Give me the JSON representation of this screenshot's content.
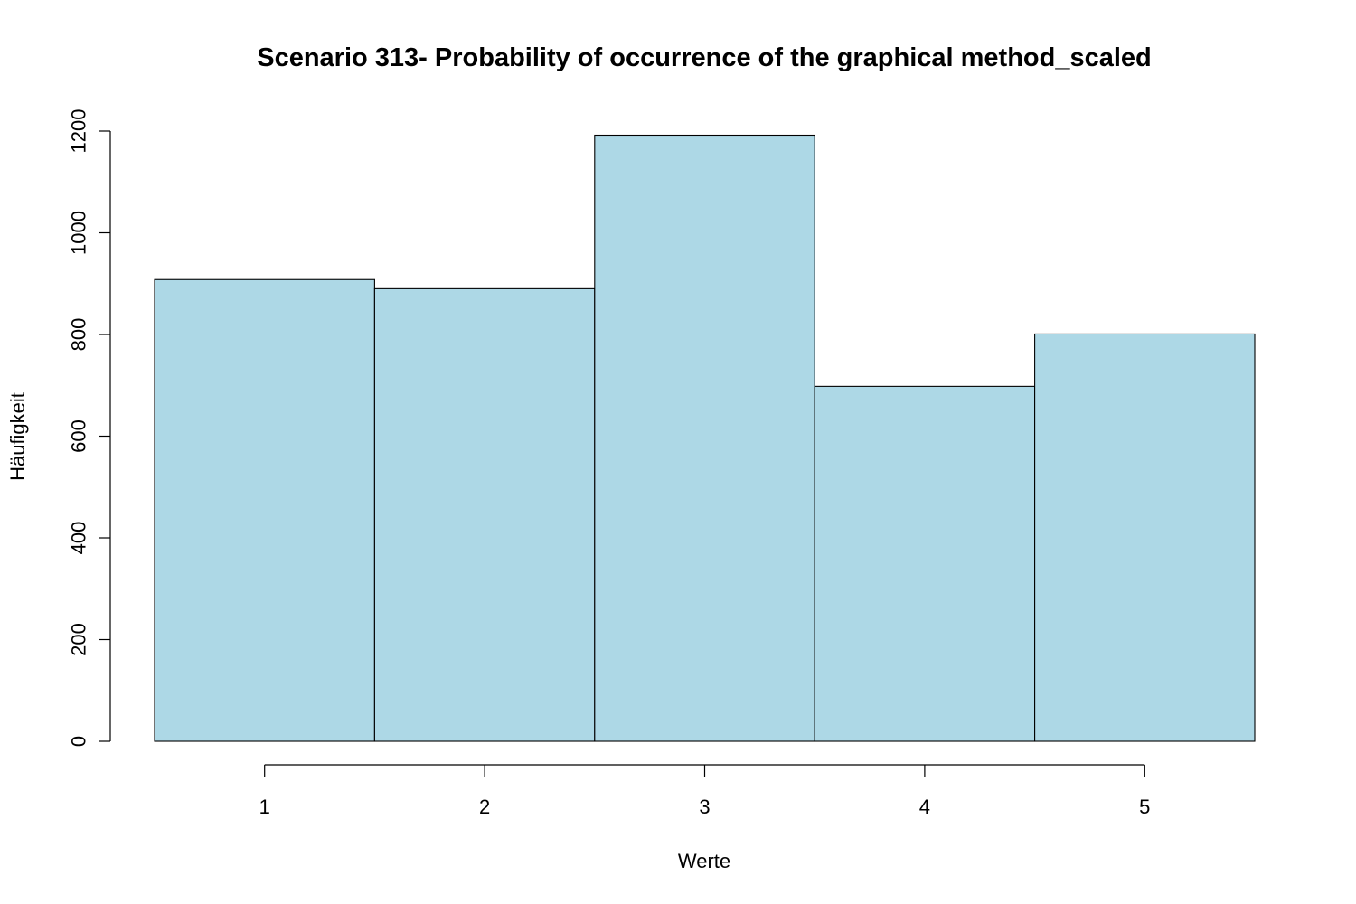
{
  "chart_data": {
    "type": "bar",
    "title": "Scenario 313- Probability of occurrence of the graphical method_scaled",
    "xlabel": "Werte",
    "ylabel": "Häufigkeit",
    "categories": [
      "1",
      "2",
      "3",
      "4",
      "5"
    ],
    "values": [
      908,
      890,
      1192,
      698,
      801
    ],
    "ylim": [
      0,
      1200
    ],
    "yticks": [
      "0",
      "200",
      "400",
      "600",
      "800",
      "1000",
      "1200"
    ],
    "xticks": [
      "1",
      "2",
      "3",
      "4",
      "5"
    ],
    "bar_color": "#add8e6",
    "grid": false,
    "legend": "none"
  }
}
